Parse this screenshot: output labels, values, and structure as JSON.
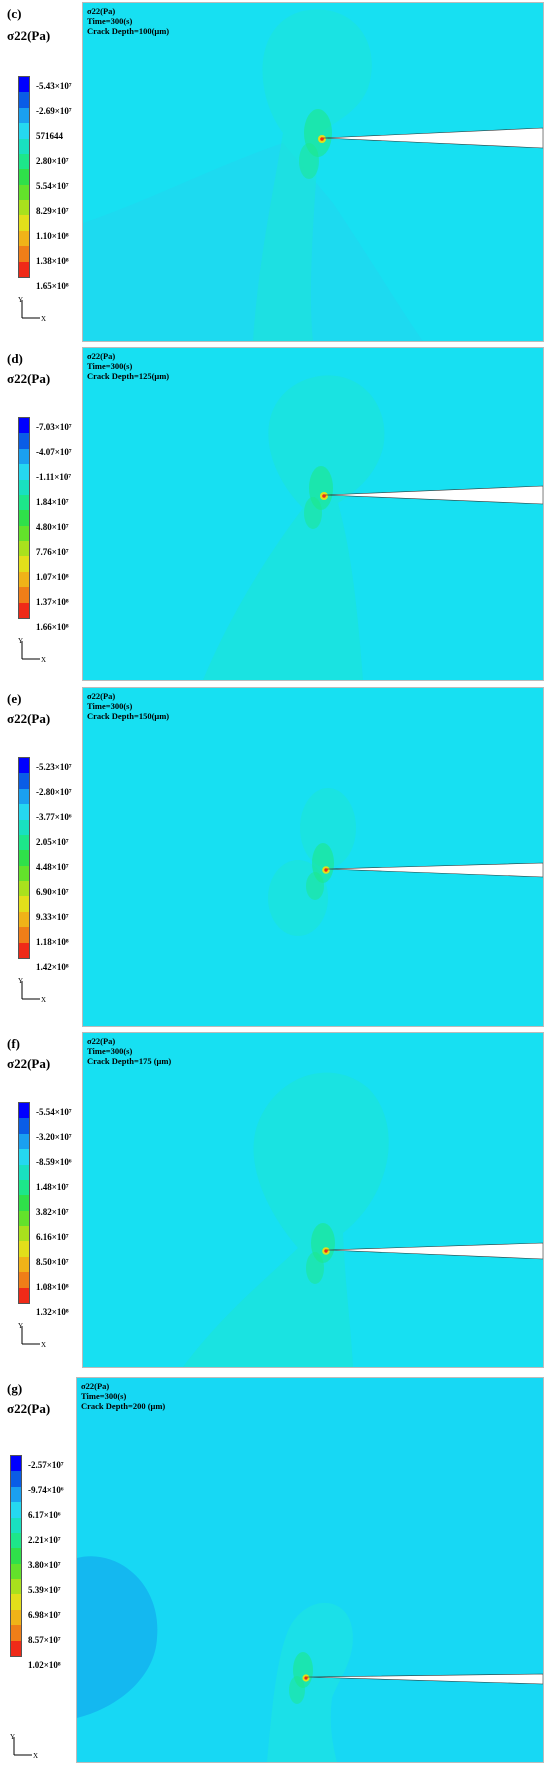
{
  "colormap": [
    "#0000ff",
    "#0a5de6",
    "#1aa0f0",
    "#25d8f0",
    "#19e0c0",
    "#1de68a",
    "#2fe04a",
    "#63e22b",
    "#a9e11d",
    "#e2df1a",
    "#f0b318",
    "#ef7e18",
    "#ef2a18"
  ],
  "background_color": "#17e0f2",
  "panels": [
    {
      "letter": "(c)",
      "quantity_label": "σ22(Pa)",
      "info_quantity": "σ22(Pa)",
      "time": "Time=300(s)",
      "crack_depth": "Crack Depth=100(μm)",
      "legend_values": [
        "-5.43×10⁷",
        "-2.69×10⁷",
        "571644",
        "2.80×10⁷",
        "5.54×10⁷",
        "8.29×10⁷",
        "1.10×10⁸",
        "1.38×10⁸",
        "1.65×10⁸"
      ],
      "axis_y": "Y",
      "axis_x": "X"
    },
    {
      "letter": "(d)",
      "quantity_label": "σ22(Pa)",
      "info_quantity": "σ22(Pa)",
      "time": "Time=300(s)",
      "crack_depth": "Crack Depth=125(μm)",
      "legend_values": [
        "-7.03×10⁷",
        "-4.07×10⁷",
        "-1.11×10⁷",
        "1.84×10⁷",
        "4.80×10⁷",
        "7.76×10⁷",
        "1.07×10⁸",
        "1.37×10⁸",
        "1.66×10⁸"
      ],
      "axis_y": "Y",
      "axis_x": "X"
    },
    {
      "letter": "(e)",
      "quantity_label": "σ22(Pa)",
      "info_quantity": "σ22(Pa)",
      "time": "Time=300(s)",
      "crack_depth": "Crack Depth=150(μm)",
      "legend_values": [
        "-5.23×10⁷",
        "-2.80×10⁷",
        "-3.77×10⁶",
        "2.05×10⁷",
        "4.48×10⁷",
        "6.90×10⁷",
        "9.33×10⁷",
        "1.18×10⁸",
        "1.42×10⁸"
      ],
      "axis_y": "Y",
      "axis_x": "X"
    },
    {
      "letter": "(f)",
      "quantity_label": "σ22(Pa)",
      "info_quantity": "σ22(Pa)",
      "time": "Time=300(s)",
      "crack_depth": "Crack Depth=175 (μm)",
      "legend_values": [
        "-5.54×10⁷",
        "-3.20×10⁷",
        "-8.59×10⁶",
        "1.48×10⁷",
        "3.82×10⁷",
        "6.16×10⁷",
        "8.50×10⁷",
        "1.08×10⁸",
        "1.32×10⁸"
      ],
      "axis_y": "Y",
      "axis_x": "X"
    },
    {
      "letter": "(g)",
      "quantity_label": "σ22(Pa)",
      "info_quantity": "σ22(Pa)",
      "time": "Time=300(s)",
      "crack_depth": "Crack Depth=200 (μm)",
      "legend_values": [
        "-2.57×10⁷",
        "-9.74×10⁶",
        "6.17×10⁶",
        "2.21×10⁷",
        "3.80×10⁷",
        "5.39×10⁷",
        "6.98×10⁷",
        "8.57×10⁷",
        "1.02×10⁸"
      ],
      "axis_y": "Y",
      "axis_x": "X"
    }
  ]
}
